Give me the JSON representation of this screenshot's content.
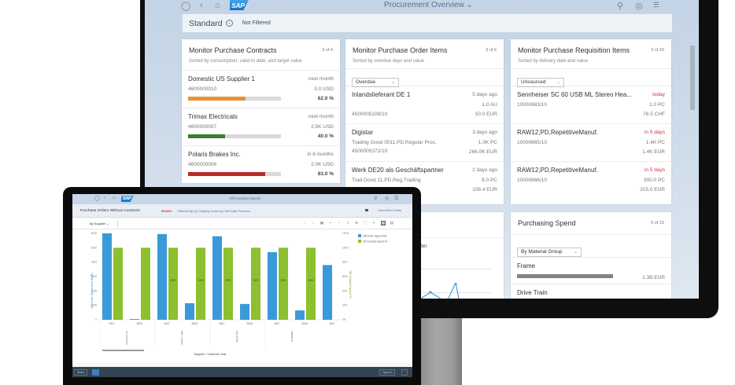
{
  "monitor": {
    "shell": {
      "title": "Procurement Overview",
      "title_chevron": "⌄",
      "logo": "SAP",
      "icons": [
        "user-icon",
        "back-icon",
        "home-icon",
        "search-icon",
        "notifications-icon",
        "menu-icon"
      ]
    },
    "filterbar": {
      "variant": "Standard",
      "status": "Not Filtered"
    },
    "cards": {
      "contracts": {
        "title": "Monitor Purchase Contracts",
        "count": "3 of 4",
        "subtitle": "Sorted by consumption, valid-to date, and target value",
        "rows": [
          {
            "name": "Domestic US Supplier 1",
            "id": "4600000010",
            "when": "next month",
            "value": "0.0 USD",
            "pct": "62.0 %",
            "pct_num": 62,
            "color": "#e8913a"
          },
          {
            "name": "Trimax Electricals",
            "id": "4600000007",
            "when": "next month",
            "value": "2.5K USD",
            "pct": "40.0 %",
            "pct_num": 40,
            "color": "#3b7d2f"
          },
          {
            "name": "Polaris Brakes Inc.",
            "id": "4600000006",
            "when": "in 8 months",
            "value": "2.0K USD",
            "pct": "83.0 %",
            "pct_num": 83,
            "color": "#b52b27"
          }
        ]
      },
      "po_items": {
        "title": "Monitor Purchase Order Items",
        "count": "3 of 6",
        "subtitle": "Sorted by overdue days and value",
        "filter": "Overdue",
        "rows": [
          {
            "name": "Inlandslieferant DE 1",
            "desc": "",
            "id": "4500005108/10",
            "when": "5 days ago",
            "qty": "1.0 AU",
            "value": "50.0 EUR"
          },
          {
            "name": "Digistar",
            "desc": "Trading Good 0011,PD,Regular Proc.",
            "id": "4500005372/10",
            "when": "3 days ago",
            "qty": "1.0K PC",
            "value": "266.0K EUR"
          },
          {
            "name": "Werk DE20 als Geschäftspartner",
            "desc": "Trad.Good 11,PD,Reg.Trading",
            "id": "",
            "when": "2 days ago",
            "qty": "8.0 PC",
            "value": "108.4 EUR"
          }
        ]
      },
      "pr_items": {
        "title": "Monitor Purchase Requisition Items",
        "count": "3 of 20",
        "subtitle": "Sorted by delivery date and value",
        "filter": "Unsourced",
        "rows": [
          {
            "name": "Sennheiser SC 60 USB ML Stereo Hea...",
            "id": "10000683/10",
            "when": "today",
            "qty": "1.0 PC",
            "value": "76.5 CHF"
          },
          {
            "name": "RAW12,PD,RepetitiveManuf.",
            "id": "10000665/10",
            "when": "in 5 days",
            "qty": "1.4K PC",
            "value": "1.4K EUR"
          },
          {
            "name": "RAW12,PD,RepetitiveManuf.",
            "id": "10000666/10",
            "when": "in 5 days",
            "qty": "300.0 PC",
            "value": "315.0 EUR"
          }
        ]
      },
      "spend_trend": {
        "title_fragment": "end",
        "subtitle_fragment": "y quarter"
      },
      "purchasing_spend": {
        "title": "Purchasing Spend",
        "count": "5 of 23",
        "filter": "By Material Group",
        "rows": [
          {
            "name": "Frame",
            "value": "1.3B EUR"
          },
          {
            "name": "Drive Train",
            "value": ""
          }
        ]
      }
    }
  },
  "laptop": {
    "shell": {
      "logo": "SAP",
      "title": "Off-Contract Spend",
      "icons": [
        "user-icon",
        "back-icon",
        "home-icon",
        "search-icon",
        "notifications-icon",
        "menu-icon"
      ]
    },
    "header": {
      "title": "Purchase Orders Without Contracts",
      "pct": "99.88%",
      "filter_text": "Filtered By (2): Display Currency, Ref Date Function",
      "show_mini_charts": "Show Mini Charts"
    },
    "toolbar": {
      "view_by": "By Supplier",
      "view_by_chevron": "⌄"
    },
    "footer": {
      "share_label": "Share",
      "open_in_label": "Open In"
    }
  },
  "chart_data": {
    "type": "bar",
    "title": "Purchase Orders Without Contracts",
    "xlabel": "Supplier / Calendar Year",
    "ylabel": "Off-Contr. Spend Amt (EUR)",
    "y2label": "Off-Contract Spend %",
    "y_ticks": [
      "0",
      "1000",
      "2000",
      "3000",
      "4000",
      "5000",
      "6000"
    ],
    "y2_ticks": [
      "0%",
      "20%",
      "40%",
      "60%",
      "80%",
      "100%",
      "120%"
    ],
    "ylim": [
      0,
      6000
    ],
    "y2lim": [
      0,
      120
    ],
    "legend": [
      "Off-Contr. Spend Amt",
      "Off-Contract Spend %"
    ],
    "legend_position": "top-right",
    "categories": [
      "2017",
      "2018",
      "2017",
      "2018",
      "2017",
      "2018",
      "2017",
      "2018",
      "2017"
    ],
    "supplier_groups": [
      "Domestic Su...",
      "Vendor 1 (M)...",
      "Vendor Ma...",
      "Schaeffler..."
    ],
    "series": [
      {
        "name": "Off-Contr. Spend Amt",
        "color": "#3a9ad9",
        "values": [
          6000,
          50,
          5950,
          1150,
          5800,
          1100,
          4700,
          650,
          3800
        ]
      },
      {
        "name": "Off-Contract Spend %",
        "color": "#8dbf2e",
        "values": [
          100,
          100,
          100,
          100,
          100,
          100,
          100,
          100,
          null
        ]
      }
    ],
    "bar_labels": [
      "",
      "",
      "100%",
      "100%",
      "100%",
      "100%",
      "100%",
      "100%",
      ""
    ]
  }
}
